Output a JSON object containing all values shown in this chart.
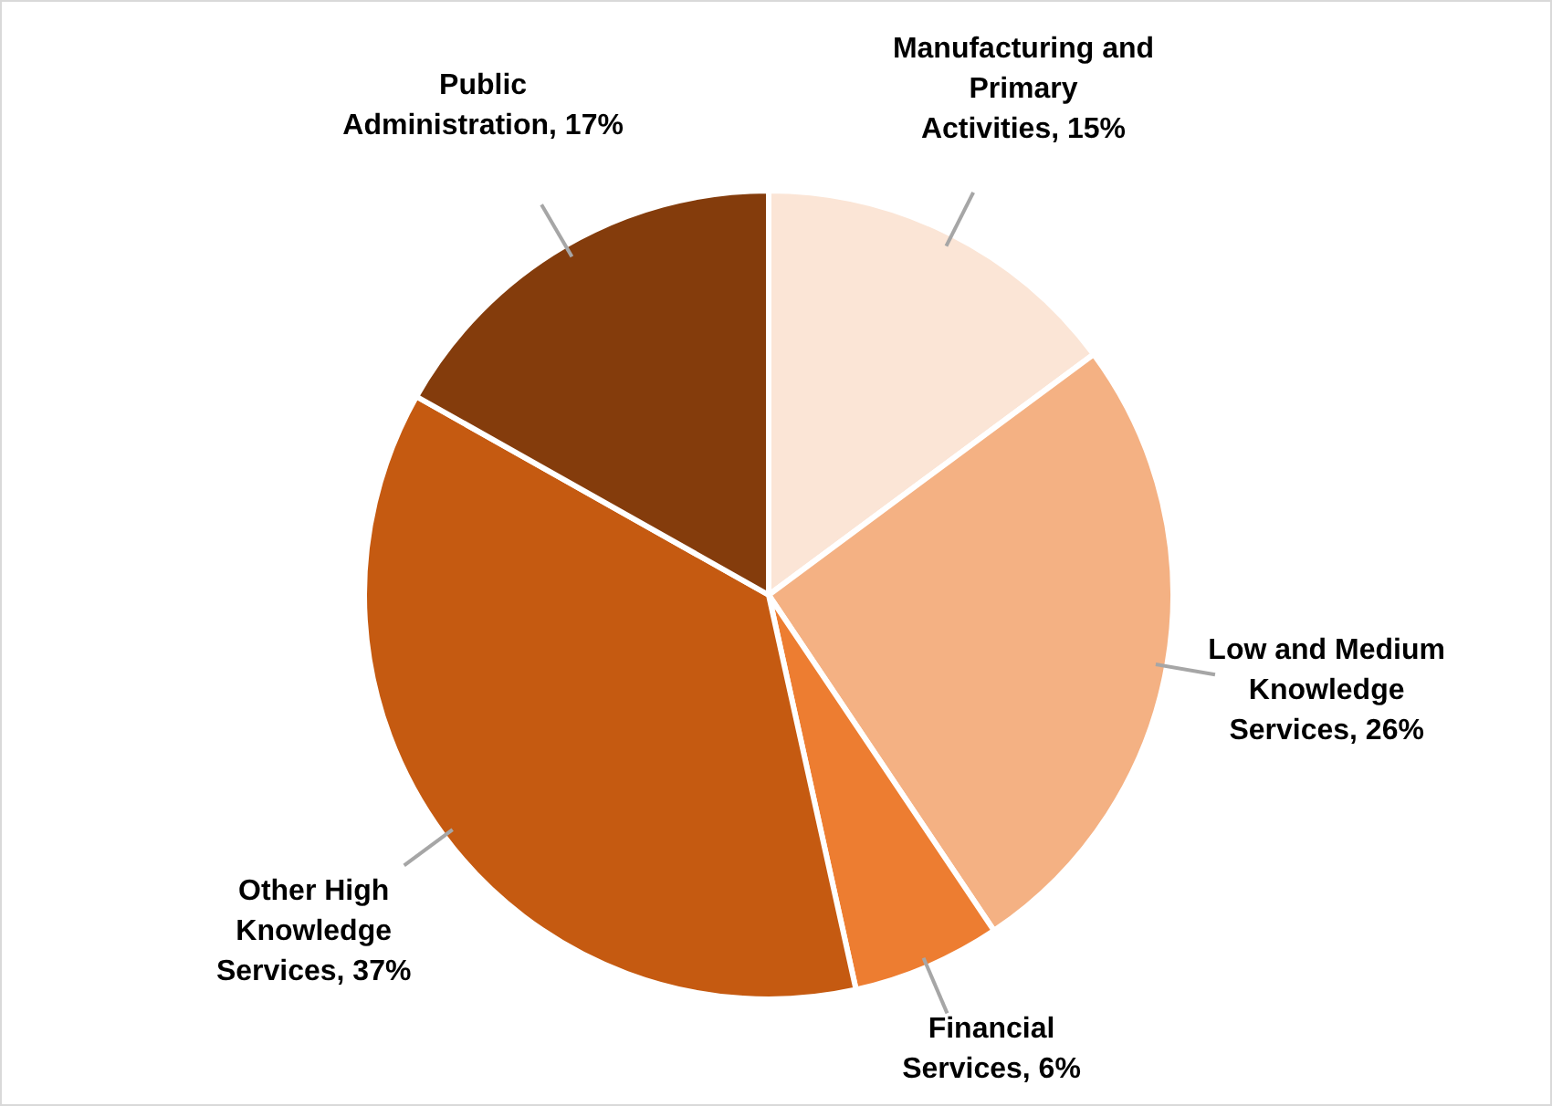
{
  "chart_data": {
    "type": "pie",
    "categories": [
      "Manufacturing and Primary Activities",
      "Low and Medium Knowledge Services",
      "Financial Services",
      "Other High Knowledge Services",
      "Public Administration"
    ],
    "values": [
      15,
      26,
      6,
      37,
      17
    ],
    "value_labels": [
      "15%",
      "26%",
      "6%",
      "37%",
      "17%"
    ],
    "colors": [
      "#fbe5d6",
      "#f4b183",
      "#ed7d31",
      "#c55a11",
      "#843c0c"
    ],
    "legend": false
  }
}
